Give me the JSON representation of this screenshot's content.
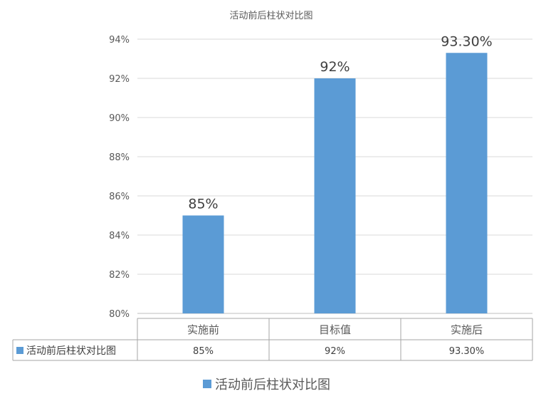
{
  "chart_data": {
    "type": "bar",
    "title": "活动前后柱状对比图",
    "categories": [
      "实施前",
      "目标值",
      "实施后"
    ],
    "series": [
      {
        "name": "活动前后柱状对比图",
        "values": [
          85,
          92,
          93.3
        ],
        "data_labels": [
          "85%",
          "92%",
          "93.30%"
        ],
        "color": "#5B9BD5"
      }
    ],
    "ylim": [
      80,
      94
    ],
    "yticks": [
      80,
      82,
      84,
      86,
      88,
      90,
      92,
      94
    ],
    "ytick_labels": [
      "80%",
      "82%",
      "84%",
      "86%",
      "88%",
      "90%",
      "92%",
      "94%"
    ],
    "xlabel": "",
    "ylabel": "",
    "grid": true,
    "data_table": true,
    "data_table_values": [
      "85%",
      "92%",
      "93.30%"
    ],
    "legend": {
      "position": "bottom",
      "label": "活动前后柱状对比图"
    },
    "colors": {
      "bar": "#5B9BD5",
      "grid": "#D9D9D9",
      "axis": "#BFBFBF",
      "table_border": "#A6A6A6"
    }
  }
}
